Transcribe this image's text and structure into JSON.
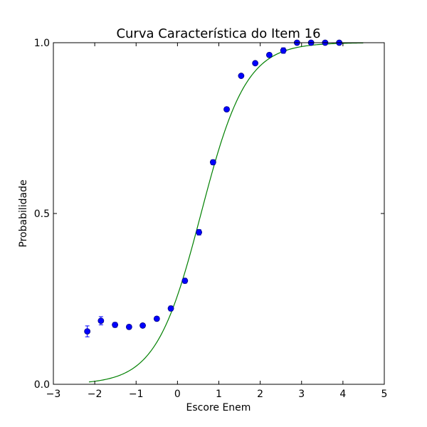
{
  "chart_data": {
    "type": "scatter",
    "title": "Curva Característica do Item 16",
    "xlabel": "Escore Enem",
    "ylabel": "Probabilidade",
    "xlim": [
      -3,
      5
    ],
    "ylim": [
      0.0,
      1.0
    ],
    "x_ticks": [
      -3,
      -2,
      -1,
      0,
      1,
      2,
      3,
      4,
      5
    ],
    "x_tick_labels": [
      "−3",
      "−2",
      "−1",
      "0",
      "1",
      "2",
      "3",
      "4",
      "5"
    ],
    "y_ticks": [
      0.0,
      0.5,
      1.0
    ],
    "y_tick_labels": [
      "0.0",
      "0.5",
      "1.0"
    ],
    "grid": false,
    "series": [
      {
        "kind": "points_with_error_bars",
        "color": "#0000ff",
        "edge_color": "#000080",
        "x": [
          -2.18,
          -1.85,
          -1.51,
          -1.17,
          -0.84,
          -0.5,
          -0.16,
          0.18,
          0.52,
          0.86,
          1.19,
          1.54,
          1.88,
          2.22,
          2.56,
          2.89,
          3.23,
          3.57,
          3.91
        ],
        "y": [
          0.155,
          0.186,
          0.174,
          0.168,
          0.172,
          0.192,
          0.222,
          0.303,
          0.445,
          0.65,
          0.805,
          0.903,
          0.94,
          0.964,
          0.977,
          1.0,
          1.0,
          1.0,
          1.0
        ],
        "y_err": [
          0.016,
          0.012,
          0.007,
          0.006,
          0.006,
          0.006,
          0.007,
          0.007,
          0.008,
          0.007,
          0.006,
          0.005,
          0.005,
          0.005,
          0.008,
          0.003,
          0.002,
          0.002,
          0.002
        ]
      },
      {
        "kind": "curve",
        "color": "#008000",
        "model": "3PL logistic",
        "a": 1.08,
        "b": 0.57,
        "c": 0.0,
        "x_range": [
          -2.14,
          4.49
        ]
      }
    ]
  }
}
